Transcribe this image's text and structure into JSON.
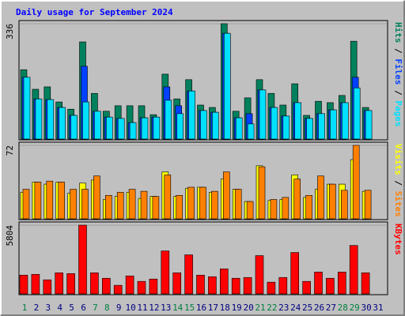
{
  "chart_data": [
    {
      "type": "bar",
      "title": "Daily usage for September 2024",
      "title_color": "#0000ff",
      "ylim": [
        0,
        336
      ],
      "yticks": [
        336
      ],
      "legend_separator": " / ",
      "series": [
        {
          "name": "Hits",
          "color": "#00805c",
          "values": [
            202,
            145,
            152,
            108,
            87,
            283,
            133,
            81,
            97,
            97,
            97,
            71,
            189,
            117,
            173,
            99,
            92,
            336,
            81,
            120,
            173,
            133,
            99,
            161,
            69,
            110,
            106,
            127,
            285,
            92,
            0
          ]
        },
        {
          "name": "Files",
          "color": "#0040ff",
          "values": [
            180,
            117,
            115,
            92,
            69,
            212,
            81,
            64,
            60,
            48,
            62,
            64,
            152,
            97,
            140,
            83,
            78,
            308,
            62,
            74,
            143,
            92,
            67,
            106,
            60,
            74,
            85,
            106,
            180,
            83,
            0
          ]
        },
        {
          "name": "Pages",
          "color": "#00e0ff",
          "values": [
            180,
            117,
            115,
            92,
            69,
            108,
            81,
            64,
            60,
            48,
            62,
            64,
            113,
            74,
            140,
            83,
            78,
            308,
            62,
            44,
            143,
            92,
            67,
            106,
            60,
            74,
            85,
            106,
            149,
            83,
            0
          ]
        }
      ]
    },
    {
      "type": "bar",
      "ylim": [
        0,
        72
      ],
      "yticks": [
        72
      ],
      "legend_separator": " / ",
      "series": [
        {
          "name": "Visits",
          "color": "#ffff00",
          "values": [
            26,
            36,
            34,
            36,
            25,
            35,
            38,
            19,
            22,
            26,
            20,
            22,
            46,
            22,
            30,
            31,
            26,
            39,
            29,
            17,
            52,
            18,
            19,
            43,
            21,
            29,
            34,
            34,
            58,
            27,
            0
          ]
        },
        {
          "name": "Sites",
          "color": "#ff8000",
          "values": [
            29,
            36,
            37,
            36,
            29,
            29,
            42,
            23,
            26,
            29,
            27,
            22,
            43,
            23,
            31,
            31,
            27,
            46,
            29,
            17,
            51,
            19,
            21,
            39,
            23,
            42,
            34,
            28,
            72,
            28,
            0
          ]
        }
      ]
    },
    {
      "type": "bar",
      "ylim": [
        0,
        5804
      ],
      "yticks": [
        5804
      ],
      "series": [
        {
          "name": "KBytes",
          "color": "#ff0000",
          "values": [
            1583,
            1649,
            1187,
            1781,
            1715,
            5804,
            1781,
            1319,
            725,
            1517,
            1055,
            1253,
            3627,
            1781,
            3297,
            1583,
            1451,
            2111,
            1319,
            1385,
            3232,
            989,
            1385,
            3496,
            1055,
            1847,
            1319,
            1847,
            4089,
            1781,
            0
          ]
        }
      ],
      "categories": [
        "1",
        "2",
        "3",
        "4",
        "5",
        "6",
        "7",
        "8",
        "9",
        "10",
        "11",
        "12",
        "13",
        "14",
        "15",
        "16",
        "17",
        "18",
        "19",
        "20",
        "21",
        "22",
        "23",
        "24",
        "25",
        "26",
        "27",
        "28",
        "29",
        "30",
        "31"
      ],
      "category_colors": [
        "#008040",
        "#000080",
        "#000080",
        "#000080",
        "#000080",
        "#000080",
        "#008040",
        "#008040",
        "#000080",
        "#000080",
        "#000080",
        "#000080",
        "#000080",
        "#008040",
        "#008040",
        "#000080",
        "#000080",
        "#000080",
        "#000080",
        "#000080",
        "#008040",
        "#008040",
        "#000080",
        "#000080",
        "#000080",
        "#000080",
        "#000080",
        "#008040",
        "#008040",
        "#000080",
        "#000080"
      ]
    }
  ]
}
